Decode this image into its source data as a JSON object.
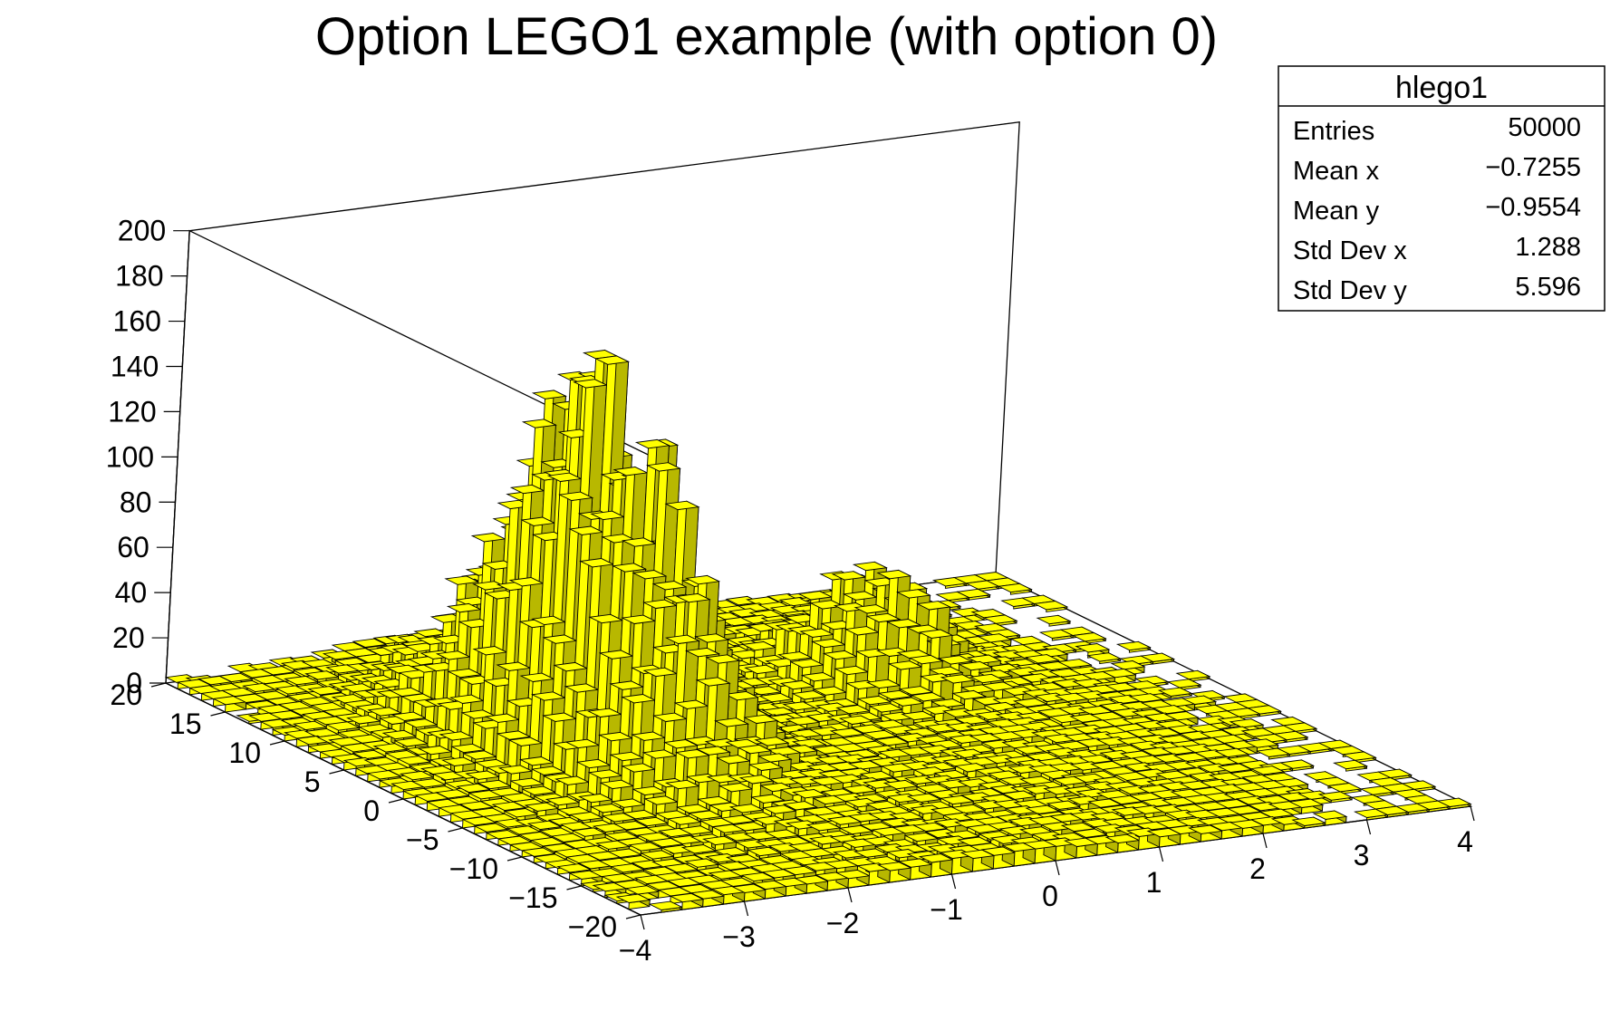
{
  "chart_data": {
    "type": "lego",
    "title": "Option LEGO1 example (with option 0)",
    "bar_color": "#ffff00",
    "x_axis": {
      "range": [
        -4,
        4
      ],
      "ticks": [
        "−4",
        "−3",
        "−2",
        "−1",
        "0",
        "1",
        "2",
        "3",
        "4"
      ]
    },
    "y_axis": {
      "range": [
        -20,
        20
      ],
      "ticks": [
        "−20",
        "−15",
        "−10",
        "−5",
        "0",
        "5",
        "10",
        "15",
        "20"
      ]
    },
    "z_axis": {
      "range": [
        0,
        200
      ],
      "ticks": [
        "0",
        "20",
        "40",
        "60",
        "80",
        "100",
        "120",
        "140",
        "160",
        "180",
        "200"
      ]
    },
    "grid": true,
    "option_0": true,
    "peaks": [
      {
        "x": -1.85,
        "y": 3.5,
        "height": 150,
        "sigma_x": 0.5,
        "sigma_y": 5.5
      },
      {
        "x": 1.3,
        "y": 7.0,
        "height": 45,
        "sigma_x": 0.45,
        "sigma_y": 3.0
      }
    ],
    "background_level": 9,
    "stats": {
      "name": "hlego1",
      "rows": [
        {
          "label": "Entries",
          "value": "50000"
        },
        {
          "label": "Mean x",
          "value": "−0.7255"
        },
        {
          "label": "Mean y",
          "value": "−0.9554"
        },
        {
          "label": "Std Dev x",
          "value": "1.288"
        },
        {
          "label": "Std Dev y",
          "value": "5.596"
        }
      ]
    }
  }
}
